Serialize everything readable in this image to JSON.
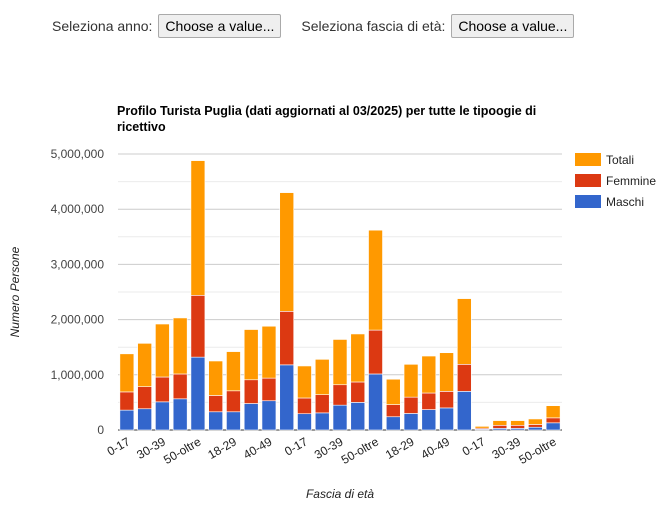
{
  "controls": {
    "year_label": "Seleziona anno:",
    "year_value": "Choose a value...",
    "age_label": "Seleziona fascia di età:",
    "age_value": "Choose a value..."
  },
  "chart_data": {
    "type": "bar",
    "stacked": true,
    "title": "Profilo Turista Puglia (dati aggiornati al 03/2025) per tutte le tipoogie di ricettivo",
    "title_lines": [
      "Profilo Turista Puglia (dati aggiornati al 03/2025) per tutte le tipoogie di",
      "ricettivo"
    ],
    "xlabel": "Fascia di età",
    "ylabel": "Numero Persone",
    "ylim": [
      0,
      5000000
    ],
    "yticks": [
      "0",
      "1,000,000",
      "2,000,000",
      "3,000,000",
      "4,000,000",
      "5,000,000"
    ],
    "grid": true,
    "legend": "right",
    "categories": [
      "0-17",
      "18-29",
      "30-39",
      "40-49",
      "50-oltre",
      "0-17",
      "18-29",
      "30-39",
      "40-49",
      "50-oltre",
      "0-17",
      "18-29",
      "30-39",
      "40-49",
      "50-oltre",
      "0-17",
      "18-29",
      "30-39",
      "40-49",
      "50-oltre",
      "0-17",
      "18-29",
      "30-39",
      "40-49",
      "50-oltre"
    ],
    "series": [
      {
        "name": "Maschi",
        "color": "#3366cc",
        "values": [
          360000,
          385000,
          510000,
          565000,
          1320000,
          330000,
          330000,
          480000,
          530000,
          1180000,
          295000,
          310000,
          450000,
          500000,
          1015000,
          240000,
          300000,
          370000,
          400000,
          700000,
          15000,
          30000,
          30000,
          50000,
          130000
        ]
      },
      {
        "name": "Femmine",
        "color": "#dc3912",
        "values": [
          330000,
          400000,
          450000,
          450000,
          1120000,
          295000,
          380000,
          430000,
          410000,
          970000,
          285000,
          330000,
          370000,
          370000,
          795000,
          220000,
          295000,
          300000,
          300000,
          490000,
          18000,
          55000,
          55000,
          50000,
          90000
        ]
      },
      {
        "name": "Totali",
        "color": "#ff9900",
        "values": [
          690000,
          785000,
          960000,
          1015000,
          2440000,
          625000,
          710000,
          910000,
          940000,
          2150000,
          580000,
          640000,
          820000,
          870000,
          1810000,
          460000,
          595000,
          670000,
          700000,
          1190000,
          33000,
          85000,
          85000,
          100000,
          220000
        ]
      }
    ]
  }
}
